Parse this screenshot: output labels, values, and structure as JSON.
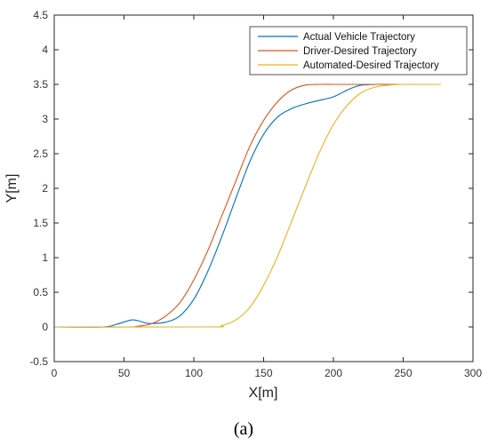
{
  "chart_data": {
    "type": "line",
    "xlabel": "X[m]",
    "ylabel": "Y[m]",
    "caption": "(a)",
    "xlim": [
      0,
      300
    ],
    "ylim": [
      -0.5,
      4.5
    ],
    "xticks": [
      "0",
      "50",
      "100",
      "150",
      "200",
      "250",
      "300"
    ],
    "yticks": [
      "-0.5",
      "0",
      "0.5",
      "1",
      "1.5",
      "2",
      "2.5",
      "3",
      "3.5",
      "4",
      "4.5"
    ],
    "grid": false,
    "legend_position": "top-right",
    "series": [
      {
        "name": "Actual Vehicle Trajectory",
        "color": "#0072BD",
        "x": [
          0,
          35,
          45,
          55,
          60,
          65,
          70,
          80,
          90,
          100,
          110,
          120,
          130,
          140,
          150,
          160,
          170,
          180,
          190,
          200,
          210,
          215,
          220,
          230,
          240,
          250,
          265
        ],
        "y": [
          0,
          0,
          0.04,
          0.1,
          0.09,
          0.06,
          0.05,
          0.07,
          0.16,
          0.4,
          0.8,
          1.3,
          1.85,
          2.38,
          2.78,
          3.03,
          3.15,
          3.22,
          3.27,
          3.32,
          3.42,
          3.46,
          3.49,
          3.5,
          3.5,
          3.5,
          3.5
        ]
      },
      {
        "name": "Driver-Desired Trajectory",
        "color": "#D95319",
        "x": [
          0,
          50,
          60,
          70,
          80,
          90,
          100,
          110,
          120,
          130,
          140,
          150,
          160,
          170,
          180,
          190,
          200,
          210,
          220,
          240,
          265
        ],
        "y": [
          0,
          0,
          0.01,
          0.05,
          0.16,
          0.35,
          0.68,
          1.1,
          1.6,
          2.1,
          2.6,
          2.98,
          3.25,
          3.42,
          3.49,
          3.5,
          3.5,
          3.5,
          3.5,
          3.5,
          3.5
        ]
      },
      {
        "name": "Automated-Desired Trajectory",
        "color": "#EDB120",
        "x": [
          0,
          110,
          120,
          130,
          140,
          150,
          160,
          170,
          180,
          190,
          200,
          210,
          220,
          230,
          240,
          250,
          260,
          270,
          277
        ],
        "y": [
          0,
          0,
          0.02,
          0.1,
          0.28,
          0.6,
          1.02,
          1.52,
          2.03,
          2.52,
          2.92,
          3.2,
          3.38,
          3.46,
          3.49,
          3.5,
          3.5,
          3.5,
          3.5
        ]
      }
    ]
  }
}
